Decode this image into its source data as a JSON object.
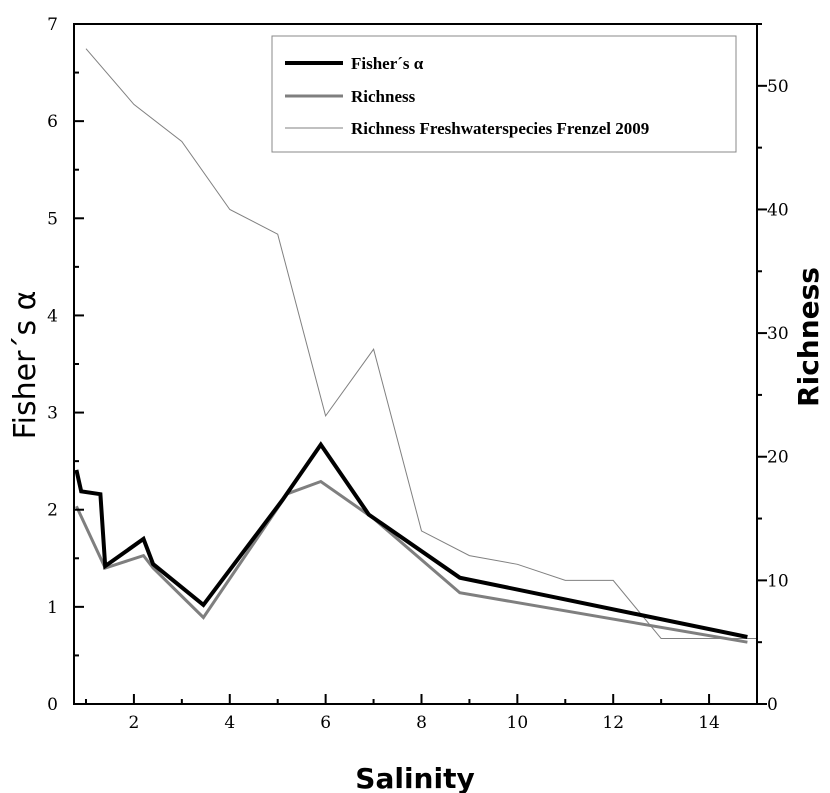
{
  "chart_data": {
    "type": "line",
    "title": "",
    "xlabel": "Salinity",
    "ylabel_left": "Fisher´s α",
    "ylabel_right": "Richness",
    "xlim": [
      0.75,
      15
    ],
    "ylim_left": [
      0,
      7
    ],
    "ylim_right": [
      0,
      55
    ],
    "x_ticks": [
      "2",
      "4",
      "6",
      "8",
      "10",
      "12",
      "14"
    ],
    "y_left_ticks": [
      "0",
      "1",
      "2",
      "3",
      "4",
      "5",
      "6",
      "7"
    ],
    "y_right_ticks": [
      "0",
      "10",
      "20",
      "30",
      "40",
      "50"
    ],
    "grid": false,
    "legend_position": "top-right",
    "series": [
      {
        "name": "Fisher´s α",
        "axis": "left",
        "color": "#000000",
        "points": [
          [
            0.8,
            2.41
          ],
          [
            0.9,
            2.19
          ],
          [
            1.3,
            2.16
          ],
          [
            1.4,
            1.42
          ],
          [
            2.2,
            1.7
          ],
          [
            2.4,
            1.44
          ],
          [
            3.45,
            1.02
          ],
          [
            5.1,
            2.1
          ],
          [
            5.9,
            2.67
          ],
          [
            6.9,
            1.95
          ],
          [
            8.8,
            1.3
          ],
          [
            14.8,
            0.69
          ]
        ]
      },
      {
        "name": "Richness",
        "axis": "right",
        "color": "#7f7f7f",
        "points": [
          [
            0.8,
            16
          ],
          [
            1.4,
            11
          ],
          [
            2.2,
            12
          ],
          [
            2.4,
            11
          ],
          [
            3.45,
            7
          ],
          [
            5.2,
            17
          ],
          [
            5.9,
            18
          ],
          [
            7.0,
            15
          ],
          [
            8.8,
            9
          ],
          [
            14.8,
            5
          ]
        ]
      },
      {
        "name": "Richness Freshwaterspecies Frenzel 2009",
        "axis": "right",
        "color": "#808080",
        "points": [
          [
            1,
            53
          ],
          [
            2,
            48.5
          ],
          [
            3,
            45.5
          ],
          [
            4,
            40
          ],
          [
            5,
            38
          ],
          [
            6,
            23.3
          ],
          [
            7,
            28.7
          ],
          [
            8,
            14
          ],
          [
            9,
            12
          ],
          [
            10,
            11.3
          ],
          [
            11,
            10
          ],
          [
            12,
            10
          ],
          [
            13,
            5.3
          ],
          [
            14,
            5.3
          ],
          [
            15,
            5.3
          ]
        ]
      }
    ]
  }
}
